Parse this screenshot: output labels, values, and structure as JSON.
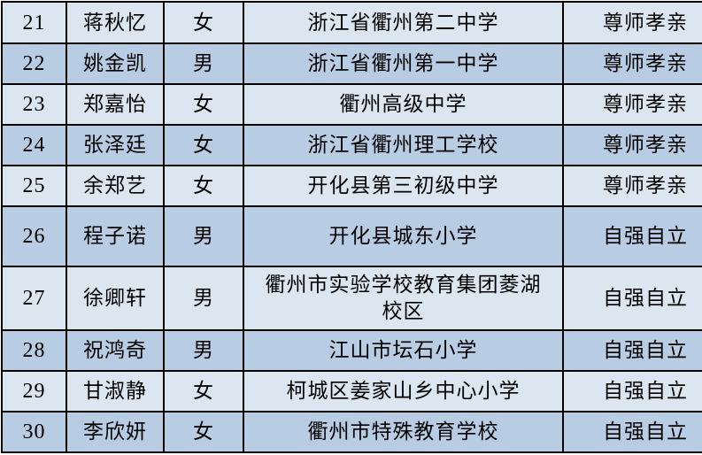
{
  "colors": {
    "row_light": "#dce6f1",
    "row_blue": "#b8cce4",
    "border": "#000000"
  },
  "rows": [
    {
      "no": "21",
      "name": "蒋秋忆",
      "gender": "女",
      "school": "浙江省衢州第二中学",
      "award": "尊师孝亲"
    },
    {
      "no": "22",
      "name": "姚金凯",
      "gender": "男",
      "school": "浙江省衢州第一中学",
      "award": "尊师孝亲"
    },
    {
      "no": "23",
      "name": "郑嘉怡",
      "gender": "女",
      "school": "衢州高级中学",
      "award": "尊师孝亲"
    },
    {
      "no": "24",
      "name": "张泽廷",
      "gender": "女",
      "school": "浙江省衢州理工学校",
      "award": "尊师孝亲"
    },
    {
      "no": "25",
      "name": "余郑艺",
      "gender": "女",
      "school": "开化县第三初级中学",
      "award": "尊师孝亲"
    },
    {
      "no": "26",
      "name": "程子诺",
      "gender": "男",
      "school": "开化县城东小学",
      "award": "自强自立"
    },
    {
      "no": "27",
      "name": "徐卿轩",
      "gender": "男",
      "school": "衢州市实验学校教育集团菱湖校区",
      "award": "自强自立"
    },
    {
      "no": "28",
      "name": "祝鸿奇",
      "gender": "男",
      "school": "江山市坛石小学",
      "award": "自强自立"
    },
    {
      "no": "29",
      "name": "甘淑静",
      "gender": "女",
      "school": "柯城区姜家山乡中心小学",
      "award": "自强自立"
    },
    {
      "no": "30",
      "name": "李欣妍",
      "gender": "女",
      "school": "衢州市特殊教育学校",
      "award": "自强自立"
    }
  ]
}
